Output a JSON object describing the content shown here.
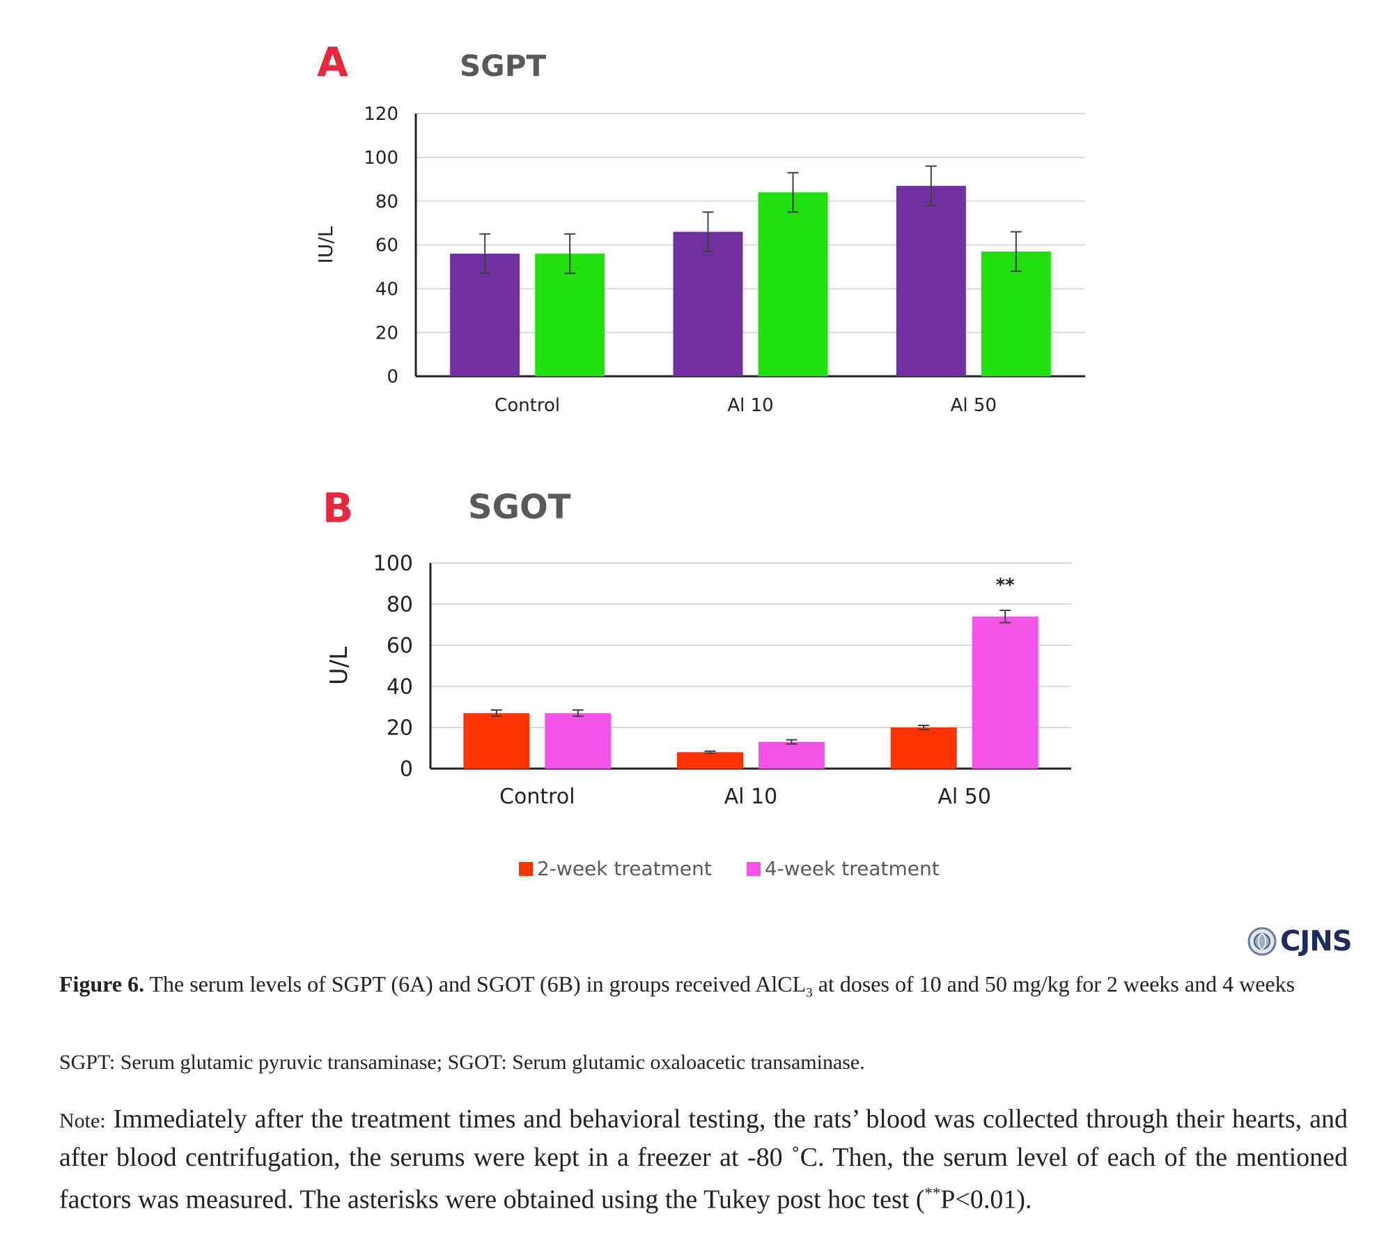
{
  "panels": {
    "a": {
      "letter": "A",
      "title": "SGPT"
    },
    "b": {
      "letter": "B",
      "title": "SGOT"
    }
  },
  "chart_data": [
    {
      "type": "bar",
      "title": "SGPT",
      "ylabel": "IU/L",
      "xlabel": "",
      "ylim": [
        0,
        120
      ],
      "yticks": [
        0,
        20,
        40,
        60,
        80,
        100,
        120
      ],
      "grid": true,
      "categories": [
        "Control",
        "Al 10",
        "Al 50"
      ],
      "series": [
        {
          "color": "#7030a0",
          "values": [
            56,
            66,
            87
          ],
          "errors": [
            9,
            9,
            9
          ]
        },
        {
          "color": "#22e010",
          "values": [
            56,
            84,
            57
          ],
          "errors": [
            9,
            9,
            9
          ]
        }
      ],
      "annotations": []
    },
    {
      "type": "bar",
      "title": "SGOT",
      "ylabel": "U/L",
      "xlabel": "",
      "ylim": [
        0,
        100
      ],
      "yticks": [
        0,
        20,
        40,
        60,
        80,
        100
      ],
      "grid": true,
      "categories": [
        "Control",
        "Al 10",
        "Al 50"
      ],
      "series": [
        {
          "name": "2-week treatment",
          "color": "#ff3300",
          "values": [
            27,
            8,
            20
          ],
          "errors": [
            1.5,
            0.5,
            1
          ]
        },
        {
          "name": "4-week treatment",
          "color": "#f552e7",
          "values": [
            27,
            13,
            74
          ],
          "errors": [
            1.5,
            1,
            3
          ]
        }
      ],
      "annotations": [
        {
          "text": "**",
          "category": "Al 50",
          "series": 1
        }
      ],
      "legend_position": "bottom"
    }
  ],
  "legend": {
    "items": [
      {
        "label": "2-week treatment",
        "color": "#ff3300"
      },
      {
        "label": "4-week treatment",
        "color": "#f552e7"
      }
    ]
  },
  "logo": {
    "text": "CJNS"
  },
  "caption": {
    "figure_label": "Figure 6.",
    "line1_part1": "The serum levels of SGPT (6A) and SGOT (6B) in groups received AlCL",
    "line1_sub": "3",
    "line1_part2": " at doses of 10 and 50 mg/kg for 2 weeks and 4 weeks",
    "abbrev": "SGPT: Serum glutamic pyruvic transaminase; SGOT: Serum glutamic oxaloacetic transaminase.",
    "note_label": "Note:",
    "note_text1": " Immediately after the treatment times and behavioral testing, the rats’ blood was collected through their hearts, and after blood centrifugation, the serums were kept in a freezer at -80 ˚C. Then, the serum level of each of the mentioned factors was measured. The asterisks were obtained using the Tukey post hoc test (",
    "note_sup": "**",
    "note_text2": "P<0.01)."
  }
}
